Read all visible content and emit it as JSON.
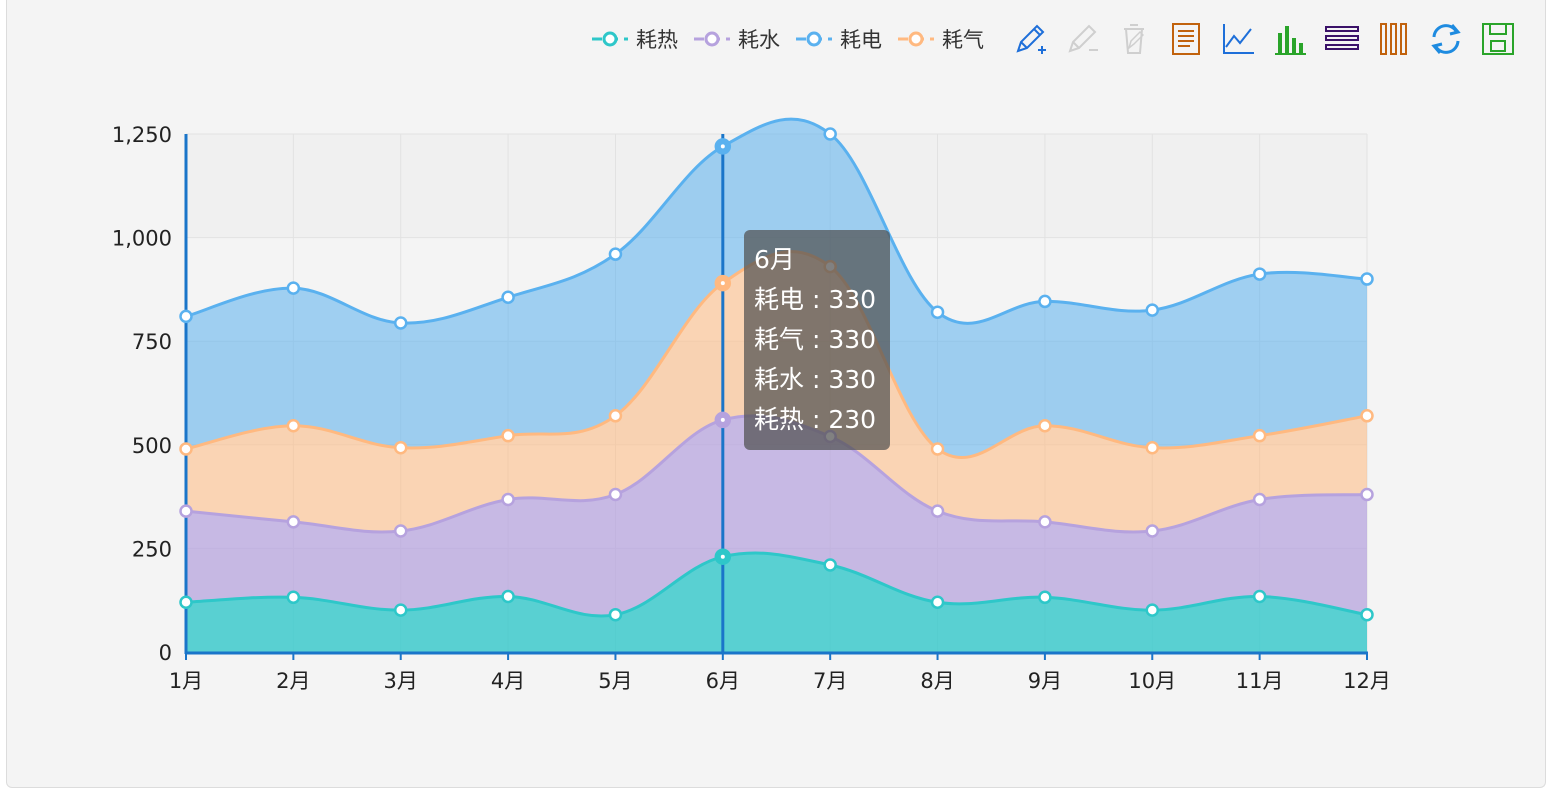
{
  "chart_data": {
    "type": "area",
    "stacked": true,
    "smooth": true,
    "categories": [
      "1月",
      "2月",
      "3月",
      "4月",
      "5月",
      "6月",
      "7月",
      "8月",
      "9月",
      "10月",
      "11月",
      "12月"
    ],
    "series": [
      {
        "name": "耗热",
        "color": "#2ec7c9",
        "values": [
          120,
          132,
          101,
          134,
          90,
          230,
          210,
          120,
          132,
          101,
          134,
          90
        ]
      },
      {
        "name": "耗水",
        "color": "#b6a2de",
        "values": [
          220,
          182,
          191,
          234,
          290,
          330,
          310,
          220,
          182,
          191,
          234,
          290
        ]
      },
      {
        "name": "耗气",
        "color": "#ffb980",
        "values": [
          150,
          232,
          201,
          154,
          190,
          330,
          410,
          150,
          232,
          201,
          154,
          190
        ]
      },
      {
        "name": "耗电",
        "color": "#5ab1ef",
        "values": [
          320,
          332,
          301,
          334,
          390,
          330,
          320,
          330,
          300,
          332,
          390,
          330
        ]
      }
    ],
    "yticks": [
      "0",
      "250",
      "500",
      "750",
      "1,000",
      "1,250"
    ],
    "ylim": [
      0,
      1250
    ],
    "grid": true,
    "legend_position": "top-right"
  },
  "tooltip": {
    "title": "6月",
    "lines": [
      "耗电 : 330",
      "耗气 : 330",
      "耗水 : 330",
      "耗热 : 230"
    ],
    "category_index": 5
  },
  "toolbox": {
    "icons": [
      "mark-icon",
      "mark-undo-icon",
      "mark-clear-icon",
      "data-view-icon",
      "line-chart-icon",
      "bar-chart-icon",
      "stack-icon",
      "tiled-icon",
      "restore-icon",
      "save-image-icon"
    ]
  }
}
